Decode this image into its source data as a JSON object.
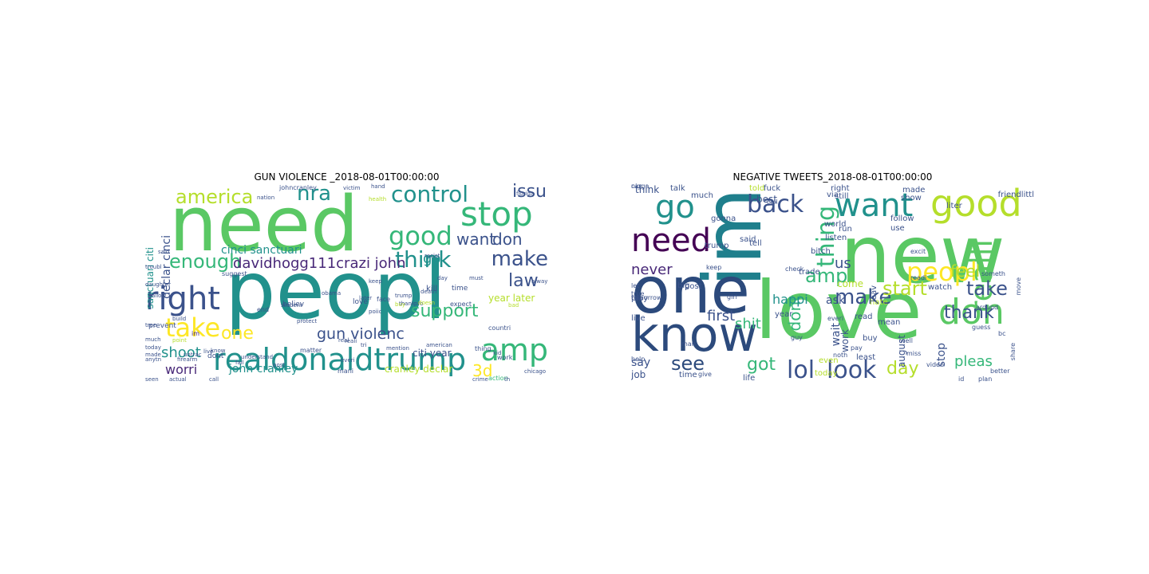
{
  "palette": {
    "green": "#5ac864",
    "lightgreen": "#8fd744",
    "teal": "#21918c",
    "darkteal": "#1f7f8c",
    "blue": "#3b528b",
    "navy": "#2c4a7c",
    "purple": "#482878",
    "darkpurple": "#440154",
    "yellow": "#fde725",
    "lime": "#b5de2b",
    "seafoam": "#35b779"
  },
  "panels": [
    {
      "title": "GUN VIOLENCE _2018-08-01T00:00:00",
      "words": [
        {
          "text": "need",
          "color": "green"
        },
        {
          "text": "peopl",
          "color": "teal"
        },
        {
          "text": "realdonaldtrump",
          "color": "teal"
        },
        {
          "text": "stop",
          "color": "seafoam"
        },
        {
          "text": "control",
          "color": "teal"
        },
        {
          "text": "good",
          "color": "seafoam"
        },
        {
          "text": "amp",
          "color": "seafoam"
        },
        {
          "text": "right",
          "color": "blue"
        },
        {
          "text": "take",
          "color": "yellow"
        },
        {
          "text": "think",
          "color": "teal"
        },
        {
          "text": "make",
          "color": "blue"
        },
        {
          "text": "law",
          "color": "blue"
        },
        {
          "text": "america",
          "color": "lime"
        },
        {
          "text": "nra",
          "color": "teal"
        },
        {
          "text": "enough",
          "color": "seafoam"
        },
        {
          "text": "support",
          "color": "seafoam"
        },
        {
          "text": "gun violenc",
          "color": "blue"
        },
        {
          "text": "davidhogg111crazi john",
          "color": "purple"
        },
        {
          "text": "issu",
          "color": "blue"
        },
        {
          "text": "want",
          "color": "blue"
        },
        {
          "text": "don",
          "color": "blue"
        },
        {
          "text": "go",
          "color": "teal"
        },
        {
          "text": "one",
          "color": "yellow"
        },
        {
          "text": "shoot",
          "color": "teal"
        },
        {
          "text": "worri",
          "color": "purple"
        },
        {
          "text": "john cranley",
          "color": "teal"
        },
        {
          "text": "3d",
          "color": "yellow"
        },
        {
          "text": "declar cinci",
          "color": "blue"
        },
        {
          "text": "sanctuari citi",
          "color": "teal"
        },
        {
          "text": "cinci sanctuari",
          "color": "teal"
        },
        {
          "text": "cranley declar",
          "color": "lime"
        },
        {
          "text": "citi year",
          "color": "blue"
        },
        {
          "text": "year later",
          "color": "lime"
        },
        {
          "text": "kill",
          "color": "blue"
        },
        {
          "text": "time",
          "color": "blue"
        },
        {
          "text": "love",
          "color": "blue"
        },
        {
          "text": "believ",
          "color": "blue"
        },
        {
          "text": "end",
          "color": "blue"
        },
        {
          "text": "face",
          "color": "blue"
        },
        {
          "text": "hand",
          "color": "blue"
        },
        {
          "text": "crime",
          "color": "blue"
        },
        {
          "text": "florida",
          "color": "blue"
        },
        {
          "text": "chicago",
          "color": "blue"
        },
        {
          "text": "action",
          "color": "seafoam"
        },
        {
          "text": "work",
          "color": "blue"
        },
        {
          "text": "thing",
          "color": "blue"
        },
        {
          "text": "countri",
          "color": "blue"
        },
        {
          "text": "matter",
          "color": "blue"
        },
        {
          "text": "daughter",
          "color": "blue"
        },
        {
          "text": "prevent",
          "color": "blue"
        },
        {
          "text": "much",
          "color": "blue"
        },
        {
          "text": "made",
          "color": "blue"
        },
        {
          "text": "dont",
          "color": "blue"
        },
        {
          "text": "mani",
          "color": "blue"
        },
        {
          "text": "im",
          "color": "purple"
        },
        {
          "text": "johncranley",
          "color": "blue"
        },
        {
          "text": "victim",
          "color": "blue"
        },
        {
          "text": "health",
          "color": "lime"
        },
        {
          "text": "trump",
          "color": "blue"
        },
        {
          "text": "thank",
          "color": "blue"
        },
        {
          "text": "pro",
          "color": "blue"
        },
        {
          "text": "death",
          "color": "blue"
        },
        {
          "text": "doesn",
          "color": "lime"
        },
        {
          "text": "expect",
          "color": "blue"
        },
        {
          "text": "bad",
          "color": "lime"
        },
        {
          "text": "allow",
          "color": "blue"
        },
        {
          "text": "build",
          "color": "blue"
        },
        {
          "text": "seen",
          "color": "blue"
        },
        {
          "text": "actual",
          "color": "blue"
        },
        {
          "text": "call",
          "color": "blue"
        },
        {
          "text": "live",
          "color": "blue"
        },
        {
          "text": "reali",
          "color": "blue"
        },
        {
          "text": "everi",
          "color": "blue"
        },
        {
          "text": "real",
          "color": "blue"
        },
        {
          "text": "understand",
          "color": "blue"
        },
        {
          "text": "mention",
          "color": "blue"
        },
        {
          "text": "american",
          "color": "blue"
        },
        {
          "text": "racist",
          "color": "blue"
        },
        {
          "text": "day",
          "color": "blue"
        },
        {
          "text": "protect",
          "color": "blue"
        },
        {
          "text": "later",
          "color": "blue"
        },
        {
          "text": "nation",
          "color": "blue"
        },
        {
          "text": "suggest",
          "color": "blue"
        },
        {
          "text": "tri",
          "color": "blue"
        },
        {
          "text": "anytn",
          "color": "blue"
        },
        {
          "text": "firearm",
          "color": "blue"
        },
        {
          "text": "fail",
          "color": "blue"
        },
        {
          "text": "keep",
          "color": "blue"
        },
        {
          "text": "buy",
          "color": "lime"
        },
        {
          "text": "alway",
          "color": "blue"
        },
        {
          "text": "poiic",
          "color": "blue"
        },
        {
          "text": "must",
          "color": "blue"
        },
        {
          "text": "kid",
          "color": "blue"
        },
        {
          "text": "th",
          "color": "blue"
        },
        {
          "text": "know",
          "color": "blue"
        },
        {
          "text": "post",
          "color": "blue"
        },
        {
          "text": "obama",
          "color": "blue"
        },
        {
          "text": "student",
          "color": "blue"
        },
        {
          "text": "tree",
          "color": "blue"
        },
        {
          "text": "today",
          "color": "blue"
        },
        {
          "text": "troubl",
          "color": "blue"
        },
        {
          "text": "said",
          "color": "blue"
        },
        {
          "text": "point",
          "color": "lime"
        },
        {
          "text": "untrac",
          "color": "blue"
        }
      ]
    },
    {
      "title": "NEGATIVE TWEETS_2018-08-01T00:00:00",
      "words": [
        {
          "text": "im",
          "color": "darkteal"
        },
        {
          "text": "new",
          "color": "green"
        },
        {
          "text": "love",
          "color": "green"
        },
        {
          "text": "one",
          "color": "navy"
        },
        {
          "text": "know",
          "color": "navy"
        },
        {
          "text": "want",
          "color": "teal"
        },
        {
          "text": "good",
          "color": "lime"
        },
        {
          "text": "go",
          "color": "teal"
        },
        {
          "text": "need",
          "color": "darkpurple"
        },
        {
          "text": "back",
          "color": "blue"
        },
        {
          "text": "don",
          "color": "green"
        },
        {
          "text": "realli",
          "color": "green"
        },
        {
          "text": "peopl",
          "color": "yellow"
        },
        {
          "text": "look",
          "color": "blue"
        },
        {
          "text": "lol",
          "color": "blue"
        },
        {
          "text": "got",
          "color": "seafoam"
        },
        {
          "text": "see",
          "color": "navy"
        },
        {
          "text": "day",
          "color": "lime"
        },
        {
          "text": "make",
          "color": "blue"
        },
        {
          "text": "start",
          "color": "lime"
        },
        {
          "text": "thank",
          "color": "blue"
        },
        {
          "text": "take",
          "color": "blue"
        },
        {
          "text": "feel",
          "color": "lime"
        },
        {
          "text": "amp",
          "color": "seafoam"
        },
        {
          "text": "thing",
          "color": "seafoam"
        },
        {
          "text": "us",
          "color": "blue"
        },
        {
          "text": "dont",
          "color": "seafoam"
        },
        {
          "text": "shit",
          "color": "seafoam"
        },
        {
          "text": "first",
          "color": "blue"
        },
        {
          "text": "never",
          "color": "purple"
        },
        {
          "text": "happi",
          "color": "teal"
        },
        {
          "text": "ask",
          "color": "blue"
        },
        {
          "text": "come",
          "color": "lime"
        },
        {
          "text": "stop",
          "color": "blue"
        },
        {
          "text": "pleas",
          "color": "seafoam"
        },
        {
          "text": "say",
          "color": "blue"
        },
        {
          "text": "job",
          "color": "blue"
        },
        {
          "text": "time",
          "color": "blue"
        },
        {
          "text": "life",
          "color": "blue"
        },
        {
          "text": "live",
          "color": "blue"
        },
        {
          "text": "think",
          "color": "blue"
        },
        {
          "text": "talk",
          "color": "blue"
        },
        {
          "text": "much",
          "color": "blue"
        },
        {
          "text": "told",
          "color": "lime"
        },
        {
          "text": "best",
          "color": "blue"
        },
        {
          "text": "right",
          "color": "blue"
        },
        {
          "text": "still",
          "color": "blue"
        },
        {
          "text": "made",
          "color": "blue"
        },
        {
          "text": "show",
          "color": "blue"
        },
        {
          "text": "follow",
          "color": "blue"
        },
        {
          "text": "use",
          "color": "blue"
        },
        {
          "text": "excit",
          "color": "blue"
        },
        {
          "text": "work",
          "color": "blue"
        },
        {
          "text": "wait",
          "color": "blue"
        },
        {
          "text": "even",
          "color": "lime"
        },
        {
          "text": "today",
          "color": "lime"
        },
        {
          "text": "august",
          "color": "blue"
        },
        {
          "text": "buy",
          "color": "blue"
        },
        {
          "text": "well",
          "color": "blue"
        },
        {
          "text": "watch",
          "color": "blue"
        },
        {
          "text": "readi",
          "color": "blue"
        },
        {
          "text": "around",
          "color": "blue"
        },
        {
          "text": "miss",
          "color": "blue"
        },
        {
          "text": "video",
          "color": "blue"
        },
        {
          "text": "better",
          "color": "blue"
        },
        {
          "text": "share",
          "color": "blue"
        },
        {
          "text": "bc",
          "color": "blue"
        },
        {
          "text": "pay",
          "color": "blue"
        },
        {
          "text": "noth",
          "color": "blue"
        },
        {
          "text": "give",
          "color": "blue"
        },
        {
          "text": "tomorrow",
          "color": "blue"
        },
        {
          "text": "true",
          "color": "blue"
        },
        {
          "text": "let",
          "color": "blue"
        },
        {
          "text": "help",
          "color": "blue"
        },
        {
          "text": "play",
          "color": "blue"
        },
        {
          "text": "big",
          "color": "blue"
        },
        {
          "text": "post",
          "color": "blue"
        },
        {
          "text": "girl",
          "color": "blue"
        },
        {
          "text": "tell",
          "color": "blue"
        },
        {
          "text": "said",
          "color": "blue"
        },
        {
          "text": "trump",
          "color": "blue"
        },
        {
          "text": "gonna",
          "color": "blue"
        },
        {
          "text": "fuck",
          "color": "blue"
        },
        {
          "text": "via",
          "color": "blue"
        },
        {
          "text": "world",
          "color": "blue"
        },
        {
          "text": "run",
          "color": "blue"
        },
        {
          "text": "listen",
          "color": "blue"
        },
        {
          "text": "bitch",
          "color": "blue"
        },
        {
          "text": "trade",
          "color": "blue"
        },
        {
          "text": "read",
          "color": "blue"
        },
        {
          "text": "everi",
          "color": "blue"
        },
        {
          "text": "hate",
          "color": "lime"
        },
        {
          "text": "year",
          "color": "blue"
        },
        {
          "text": "man",
          "color": "blue"
        },
        {
          "text": "guy",
          "color": "blue"
        },
        {
          "text": "least",
          "color": "blue"
        },
        {
          "text": "mean",
          "color": "blue"
        },
        {
          "text": "liter",
          "color": "blue"
        },
        {
          "text": "friendlittl",
          "color": "blue"
        },
        {
          "text": "move",
          "color": "blue"
        },
        {
          "text": "someth",
          "color": "blue"
        },
        {
          "text": "guess",
          "color": "blue"
        },
        {
          "text": "leav",
          "color": "blue"
        },
        {
          "text": "call",
          "color": "blue"
        },
        {
          "text": "id",
          "color": "blue"
        },
        {
          "text": "plan",
          "color": "blue"
        },
        {
          "text": "check",
          "color": "blue"
        },
        {
          "text": "keep",
          "color": "blue"
        },
        {
          "text": "can",
          "color": "blue"
        },
        {
          "text": "nigga",
          "color": "blue"
        }
      ]
    }
  ]
}
